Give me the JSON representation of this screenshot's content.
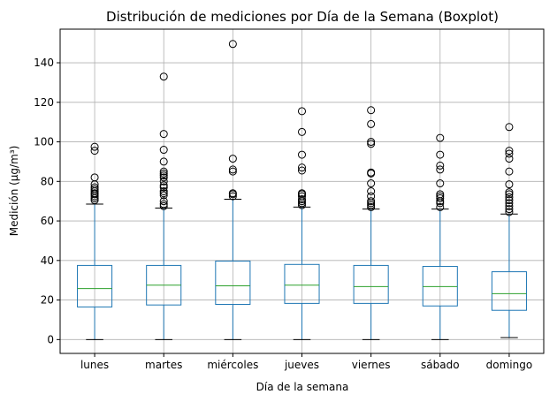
{
  "chart_data": {
    "type": "boxplot",
    "title": "Distribución de mediciones por Día de la Semana (Boxplot)",
    "xlabel": "Día de la semana",
    "ylabel": "Medición (µg/m³)",
    "ylim": [
      -7,
      157
    ],
    "yticks": [
      0,
      20,
      40,
      60,
      80,
      100,
      120,
      140
    ],
    "grid": true,
    "colors": {
      "box": "#1f77b4",
      "median": "#2ca02c",
      "grid": "#b0b0b0",
      "flier": "#000000"
    },
    "categories": [
      "lunes",
      "martes",
      "miércoles",
      "jueves",
      "viernes",
      "sábado",
      "domingo"
    ],
    "boxes": [
      {
        "min": 0,
        "q1": 16.5,
        "median": 25.8,
        "q3": 37.5,
        "max": 68.5,
        "outliers": [
          70.5,
          71.5,
          72.5,
          73.5,
          74,
          75,
          76,
          77,
          78.5,
          82,
          95.5,
          97.5
        ]
      },
      {
        "min": 0,
        "q1": 17.5,
        "median": 27.5,
        "q3": 37.5,
        "max": 66.5,
        "outliers": [
          67.5,
          68.5,
          70,
          73,
          74,
          75,
          77,
          78,
          80,
          82,
          83,
          84,
          85,
          90,
          96,
          104,
          133
        ]
      },
      {
        "min": 0,
        "q1": 17.8,
        "median": 27.2,
        "q3": 39.7,
        "max": 71,
        "outliers": [
          72.5,
          73.5,
          74,
          85,
          86,
          91.5,
          149.5
        ]
      },
      {
        "min": 0,
        "q1": 18.3,
        "median": 27.5,
        "q3": 38,
        "max": 67,
        "outliers": [
          68,
          69,
          70,
          71,
          72.5,
          73.5,
          74,
          85.5,
          87,
          93.5,
          105,
          115.5
        ]
      },
      {
        "min": 0,
        "q1": 18.3,
        "median": 26.8,
        "q3": 37.5,
        "max": 66,
        "outliers": [
          67,
          68,
          69,
          70,
          72.5,
          75,
          79,
          84,
          84.5,
          99,
          100,
          109,
          116
        ]
      },
      {
        "min": 0,
        "q1": 17,
        "median": 26.8,
        "q3": 37,
        "max": 66,
        "outliers": [
          67,
          69,
          70,
          71.5,
          72.5,
          73.5,
          79,
          86,
          88,
          93.5,
          102
        ]
      },
      {
        "min": 1,
        "q1": 14.8,
        "median": 23.2,
        "q3": 34.3,
        "max": 63.5,
        "outliers": [
          64.5,
          66,
          67.5,
          69,
          70.5,
          72,
          73.5,
          74.5,
          78.5,
          85,
          91.5,
          94,
          95.5,
          107.5
        ]
      }
    ]
  }
}
